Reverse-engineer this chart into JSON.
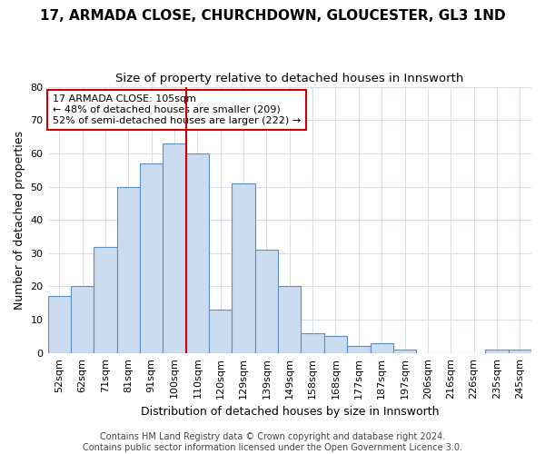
{
  "title": "17, ARMADA CLOSE, CHURCHDOWN, GLOUCESTER, GL3 1ND",
  "subtitle": "Size of property relative to detached houses in Innsworth",
  "xlabel": "Distribution of detached houses by size in Innsworth",
  "ylabel": "Number of detached properties",
  "bar_labels": [
    "52sqm",
    "62sqm",
    "71sqm",
    "81sqm",
    "91sqm",
    "100sqm",
    "110sqm",
    "120sqm",
    "129sqm",
    "139sqm",
    "149sqm",
    "158sqm",
    "168sqm",
    "177sqm",
    "187sqm",
    "197sqm",
    "206sqm",
    "216sqm",
    "226sqm",
    "235sqm",
    "245sqm"
  ],
  "bar_values": [
    17,
    20,
    32,
    50,
    57,
    63,
    60,
    13,
    51,
    31,
    20,
    6,
    5,
    2,
    3,
    1,
    0,
    0,
    0,
    1,
    1
  ],
  "bar_color": "#ccdcf0",
  "bar_edgecolor": "#5b8ec4",
  "vline_x_index": 6,
  "vline_color": "#cc0000",
  "annotation_text": "17 ARMADA CLOSE: 105sqm\n← 48% of detached houses are smaller (209)\n52% of semi-detached houses are larger (222) →",
  "annotation_box_color": "white",
  "annotation_box_edgecolor": "#cc0000",
  "footer_text": "Contains HM Land Registry data © Crown copyright and database right 2024.\nContains public sector information licensed under the Open Government Licence 3.0.",
  "ylim": [
    0,
    80
  ],
  "yticks": [
    0,
    10,
    20,
    30,
    40,
    50,
    60,
    70,
    80
  ],
  "title_fontsize": 11,
  "subtitle_fontsize": 9.5,
  "ylabel_fontsize": 9,
  "xlabel_fontsize": 9,
  "tick_fontsize": 8,
  "footer_fontsize": 7
}
